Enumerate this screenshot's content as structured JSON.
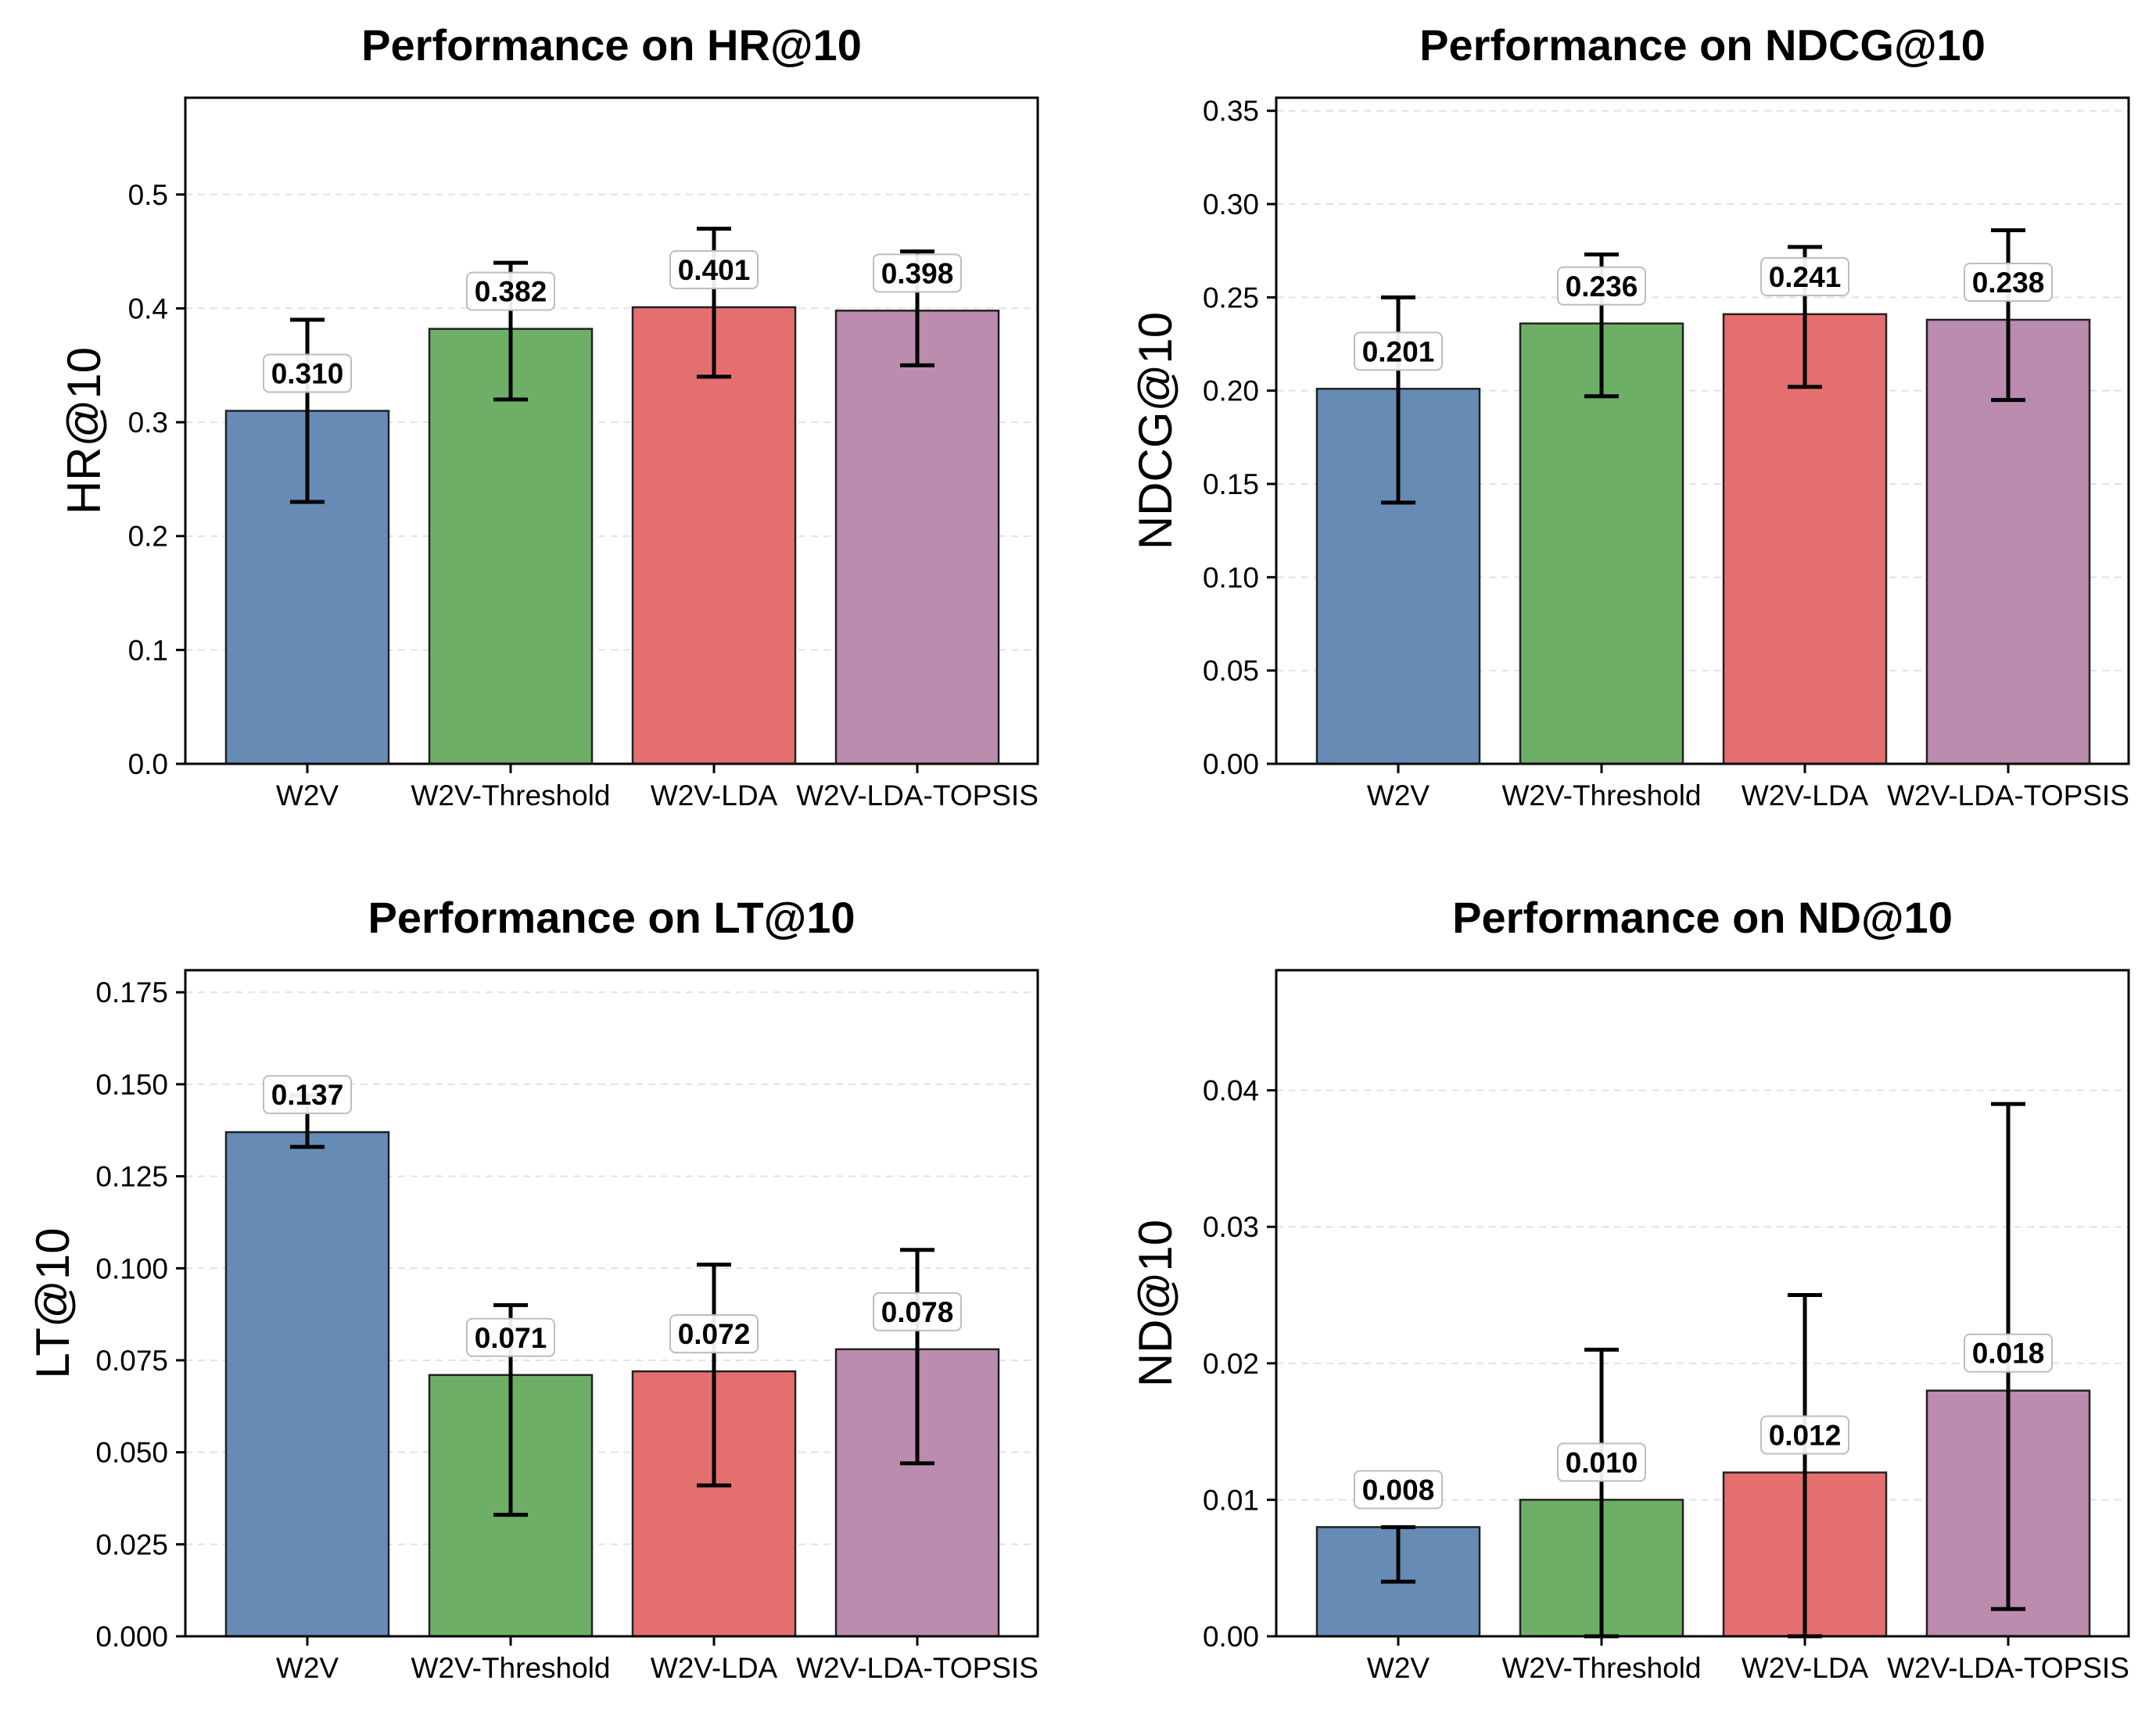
{
  "chart_data": [
    {
      "type": "bar",
      "title": "Performance on HR@10",
      "ylabel": "HR@10",
      "xlabel": "",
      "categories": [
        "W2V",
        "W2V-Threshold",
        "W2V-LDA",
        "W2V-LDA-TOPSIS"
      ],
      "values": [
        0.31,
        0.382,
        0.401,
        0.398
      ],
      "value_labels": [
        "0.310",
        "0.382",
        "0.401",
        "0.398"
      ],
      "error_low": [
        0.23,
        0.32,
        0.34,
        0.35
      ],
      "error_high": [
        0.39,
        0.44,
        0.47,
        0.45
      ],
      "ylim": [
        0,
        0.585
      ],
      "yticks": [
        0.0,
        0.1,
        0.2,
        0.3,
        0.4,
        0.5
      ],
      "ytick_labels": [
        "0.0",
        "0.1",
        "0.2",
        "0.3",
        "0.4",
        "0.5"
      ],
      "grid": true
    },
    {
      "type": "bar",
      "title": "Performance on NDCG@10",
      "ylabel": "NDCG@10",
      "xlabel": "",
      "categories": [
        "W2V",
        "W2V-Threshold",
        "W2V-LDA",
        "W2V-LDA-TOPSIS"
      ],
      "values": [
        0.201,
        0.236,
        0.241,
        0.238
      ],
      "value_labels": [
        "0.201",
        "0.236",
        "0.241",
        "0.238"
      ],
      "error_low": [
        0.14,
        0.197,
        0.202,
        0.195
      ],
      "error_high": [
        0.25,
        0.273,
        0.277,
        0.286
      ],
      "ylim": [
        0,
        0.357
      ],
      "yticks": [
        0.0,
        0.05,
        0.1,
        0.15,
        0.2,
        0.25,
        0.3,
        0.35
      ],
      "ytick_labels": [
        "0.00",
        "0.05",
        "0.10",
        "0.15",
        "0.20",
        "0.25",
        "0.30",
        "0.35"
      ],
      "grid": true
    },
    {
      "type": "bar",
      "title": "Performance on LT@10",
      "ylabel": "LT@10",
      "xlabel": "",
      "categories": [
        "W2V",
        "W2V-Threshold",
        "W2V-LDA",
        "W2V-LDA-TOPSIS"
      ],
      "values": [
        0.137,
        0.071,
        0.072,
        0.078
      ],
      "value_labels": [
        "0.137",
        "0.071",
        "0.072",
        "0.078"
      ],
      "error_low": [
        0.133,
        0.033,
        0.041,
        0.047
      ],
      "error_high": [
        0.147,
        0.09,
        0.101,
        0.105
      ],
      "ylim": [
        0,
        0.181
      ],
      "yticks": [
        0.0,
        0.025,
        0.05,
        0.075,
        0.1,
        0.125,
        0.15,
        0.175
      ],
      "ytick_labels": [
        "0.000",
        "0.025",
        "0.050",
        "0.075",
        "0.100",
        "0.125",
        "0.150",
        "0.175"
      ],
      "grid": true
    },
    {
      "type": "bar",
      "title": "Performance on ND@10",
      "ylabel": "ND@10",
      "xlabel": "",
      "categories": [
        "W2V",
        "W2V-Threshold",
        "W2V-LDA",
        "W2V-LDA-TOPSIS"
      ],
      "values": [
        0.008,
        0.01,
        0.012,
        0.018
      ],
      "value_labels": [
        "0.008",
        "0.010",
        "0.012",
        "0.018"
      ],
      "error_low": [
        0.004,
        0.0,
        0.0,
        0.002
      ],
      "error_high": [
        0.008,
        0.021,
        0.025,
        0.039
      ],
      "ylim": [
        0,
        0.0488
      ],
      "yticks": [
        0.0,
        0.01,
        0.02,
        0.03,
        0.04
      ],
      "ytick_labels": [
        "0.00",
        "0.01",
        "0.02",
        "0.03",
        "0.04"
      ],
      "grid": true
    }
  ],
  "colors": {
    "bars": [
      "#668cb5",
      "#6daf66",
      "#e56f6f",
      "#bb8cae"
    ]
  }
}
